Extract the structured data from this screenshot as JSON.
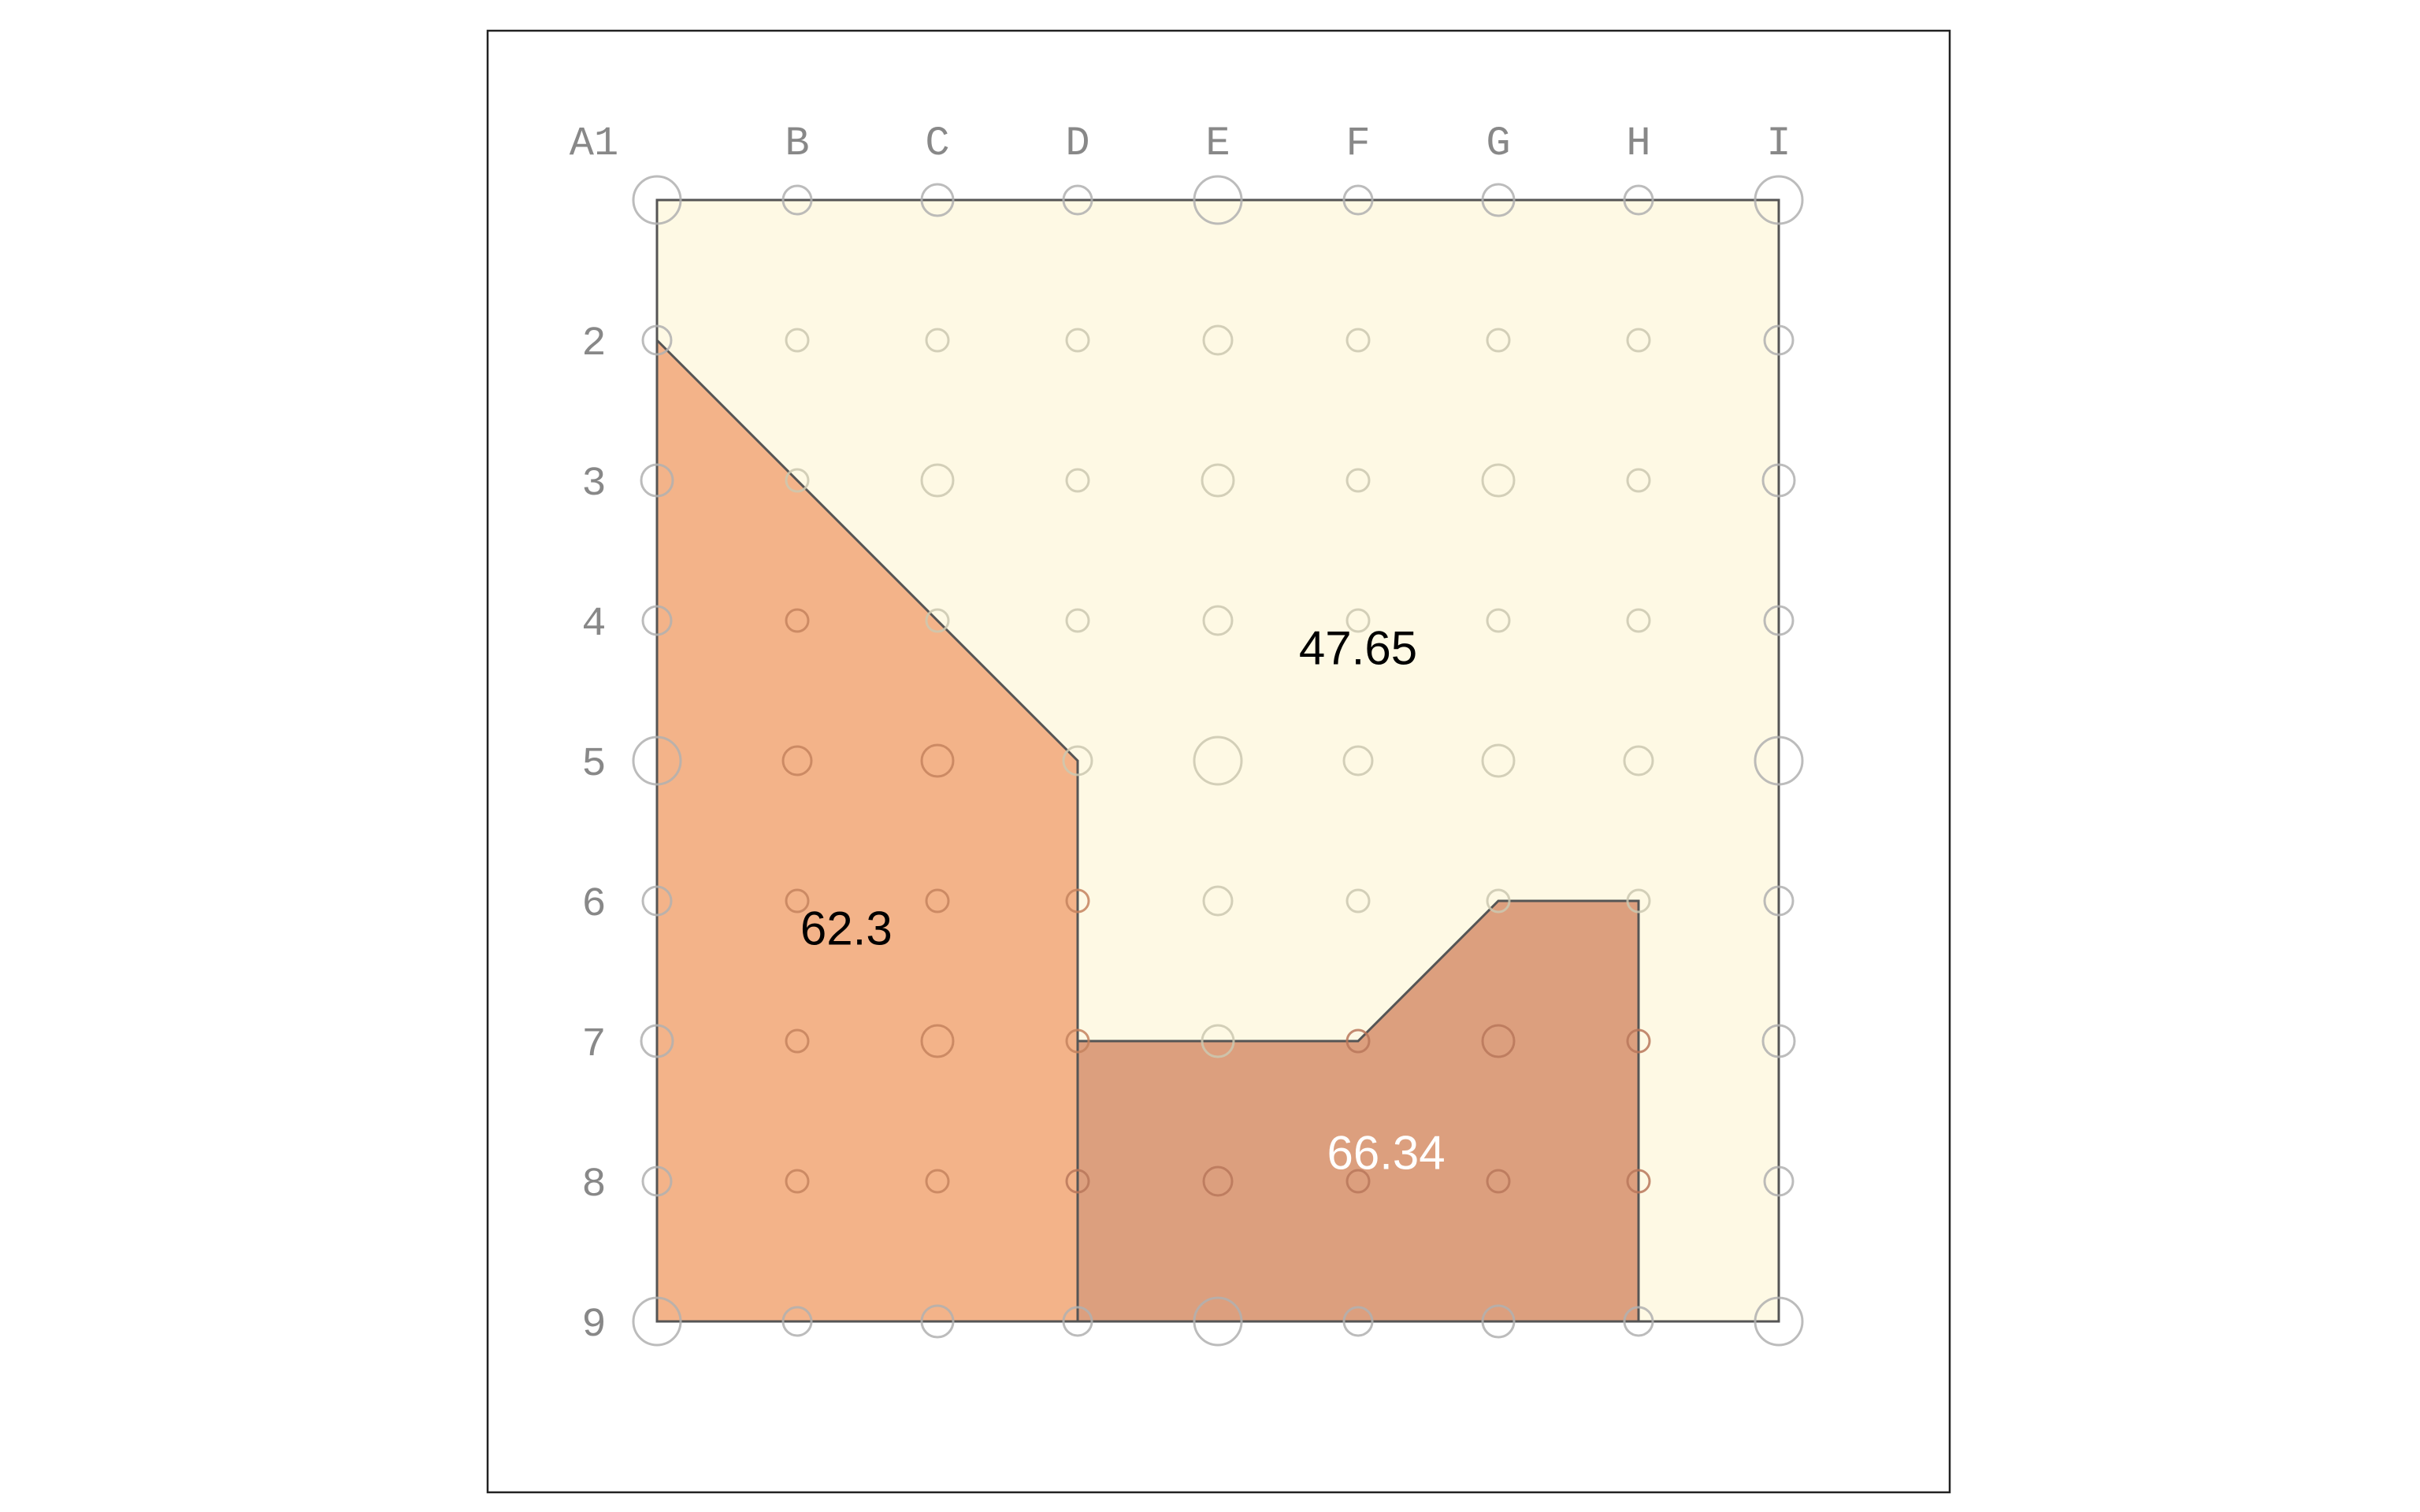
{
  "grid": {
    "columns": [
      "A1",
      "B",
      "C",
      "D",
      "E",
      "F",
      "G",
      "H",
      "I"
    ],
    "rows": [
      "2",
      "3",
      "4",
      "5",
      "6",
      "7",
      "8",
      "9"
    ],
    "major_marks_every": 4,
    "minor_marks_every": 2
  },
  "regions": [
    {
      "id": "background",
      "fill": "#fef9e4",
      "vertices": [
        [
          "A",
          1
        ],
        [
          "I",
          1
        ],
        [
          "I",
          9
        ],
        [
          "A",
          9
        ]
      ],
      "label": "47.65",
      "label_at": [
        "F",
        4.2
      ],
      "label_color": "#000000"
    },
    {
      "id": "left",
      "fill": "#f3b389",
      "vertices": [
        [
          "A",
          2
        ],
        [
          "D",
          5
        ],
        [
          "D",
          9
        ],
        [
          "A",
          9
        ]
      ],
      "label": "62.3",
      "label_at": [
        "B.35",
        6.2
      ],
      "label_color": "#000000"
    },
    {
      "id": "bottom",
      "fill": "#dc9f7e",
      "vertices": [
        [
          "D",
          7
        ],
        [
          "F",
          7
        ],
        [
          "G",
          6
        ],
        [
          "H",
          6
        ],
        [
          "H",
          9
        ],
        [
          "D",
          9
        ]
      ],
      "label": "66.34",
      "label_at": [
        "F.2",
        7.8
      ],
      "label_color": "#ffffff"
    }
  ],
  "colors": {
    "frame": "#222222",
    "outline": "#555555",
    "label_text": "#888888",
    "dot_on_light": "#cbc8b0",
    "dot_on_orange": "#c4825e",
    "dot_on_brown": "#b8775a"
  }
}
